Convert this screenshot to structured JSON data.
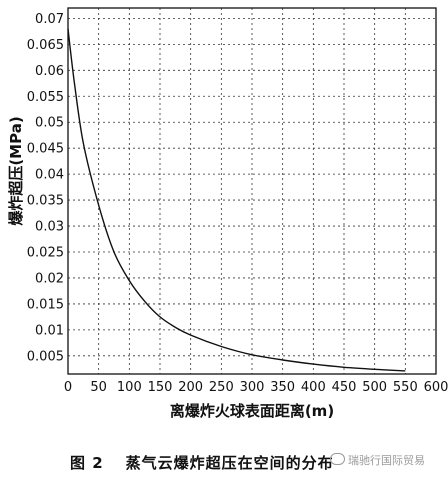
{
  "chart_data": {
    "type": "line",
    "title": "",
    "xlabel": "离爆炸火球表面距离(m)",
    "ylabel": "爆炸超压(MPa)",
    "xlim": [
      0,
      600
    ],
    "ylim": [
      0.0015,
      0.072
    ],
    "x_ticks": [
      "0",
      "50",
      "100",
      "150",
      "200",
      "250",
      "300",
      "350",
      "400",
      "450",
      "500",
      "550",
      "600"
    ],
    "y_ticks": [
      "0.005",
      "0.01",
      "0.015",
      "0.02",
      "0.025",
      "0.03",
      "0.035",
      "0.04",
      "0.045",
      "0.05",
      "0.055",
      "0.06",
      "0.065",
      "0.07"
    ],
    "grid": true,
    "grid_style": "dashed",
    "series": [
      {
        "x": [
          0,
          10,
          25,
          50,
          75,
          100,
          125,
          150,
          175,
          200,
          250,
          300,
          350,
          400,
          450,
          500,
          550
        ],
        "y": [
          0.068,
          0.058,
          0.046,
          0.034,
          0.025,
          0.0195,
          0.0155,
          0.0125,
          0.0105,
          0.009,
          0.0068,
          0.0052,
          0.0042,
          0.0034,
          0.0028,
          0.0024,
          0.0021
        ]
      }
    ]
  },
  "caption": {
    "figure_number": "图 2",
    "text": "蒸气云爆炸超压在空间的分布"
  },
  "watermark": {
    "text": "瑞驰行国际贸易"
  }
}
